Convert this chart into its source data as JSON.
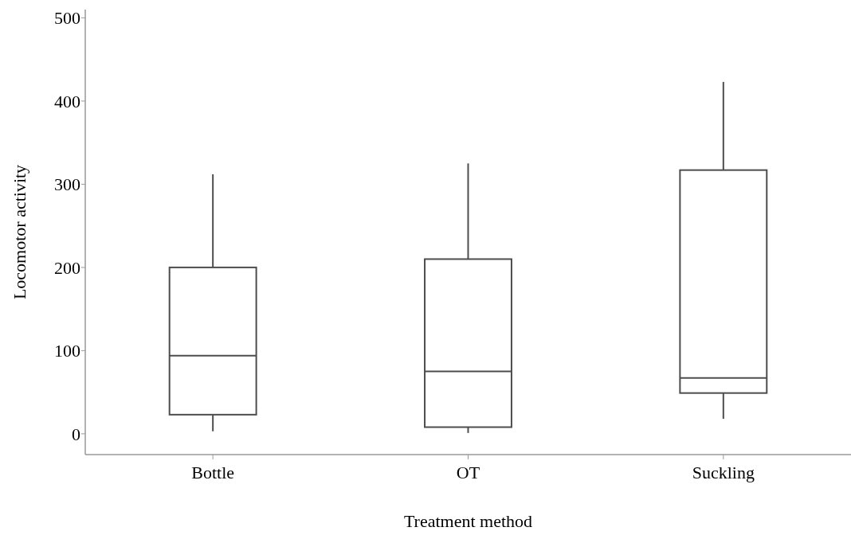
{
  "chart_data": {
    "type": "box",
    "xlabel": "Treatment method",
    "ylabel": "Locomotor activity",
    "categories": [
      "Bottle",
      "OT",
      "Suckling"
    ],
    "boxes": [
      {
        "low": 3,
        "q1": 23,
        "median": 94,
        "q3": 200,
        "high": 312
      },
      {
        "low": 1,
        "q1": 8,
        "median": 75,
        "q3": 210,
        "high": 325
      },
      {
        "low": 18,
        "q1": 49,
        "median": 67,
        "q3": 317,
        "high": 423
      }
    ],
    "color": "#4d4d4d",
    "ylim": [
      -25,
      510
    ],
    "yticks": [
      0,
      100,
      200,
      300,
      400,
      500
    ],
    "grid": false
  }
}
